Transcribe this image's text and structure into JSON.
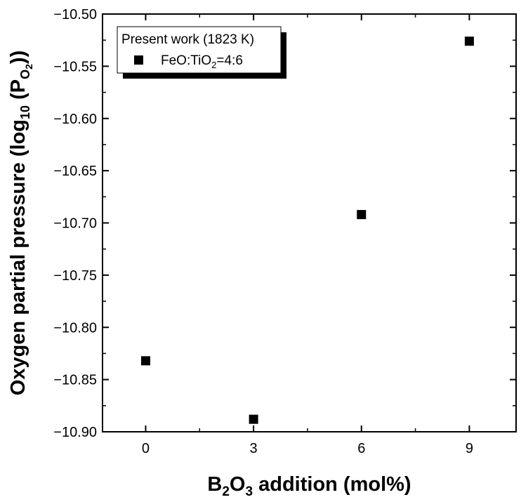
{
  "chart_data": {
    "type": "scatter",
    "title": "",
    "xlabel": {
      "parts": [
        {
          "text": "B",
          "sub": false
        },
        {
          "text": "2",
          "sub": true
        },
        {
          "text": "O",
          "sub": false
        },
        {
          "text": "3",
          "sub": true
        },
        {
          "text": " addition (mol%)",
          "sub": false
        }
      ]
    },
    "ylabel": {
      "parts": [
        {
          "text": "Oxygen partial pressure (log",
          "sub": false
        },
        {
          "text": "10",
          "sub": true
        },
        {
          "text": " (P",
          "sub": false
        },
        {
          "text": "O",
          "sub": true
        },
        {
          "text": "2",
          "subsub": true
        },
        {
          "text": "))",
          "sub": false
        }
      ]
    },
    "xlim": [
      -1.2,
      10.3
    ],
    "ylim": [
      -10.9,
      -10.5
    ],
    "x_ticks": [
      0,
      3,
      6,
      9
    ],
    "x_tick_labels": [
      "0",
      "3",
      "6",
      "9"
    ],
    "y_ticks": [
      -10.5,
      -10.55,
      -10.6,
      -10.65,
      -10.7,
      -10.75,
      -10.8,
      -10.85,
      -10.9
    ],
    "y_tick_labels": [
      "−10.50",
      "−10.55",
      "−10.60",
      "−10.65",
      "−10.70",
      "−10.75",
      "−10.80",
      "−10.85",
      "−10.90"
    ],
    "grid": false,
    "marker": "square",
    "marker_color": "#000000",
    "legend": {
      "placement": "top-left",
      "title": "Present work (1823 K)",
      "entries": [
        {
          "parts": [
            {
              "text": "FeO:TiO",
              "sub": false
            },
            {
              "text": "2",
              "sub": true
            },
            {
              "text": "=4:6",
              "sub": false
            }
          ]
        }
      ]
    },
    "series": [
      {
        "name": "FeO:TiO2=4:6",
        "x": [
          0,
          3,
          6,
          9
        ],
        "y": [
          -10.832,
          -10.888,
          -10.692,
          -10.526
        ]
      }
    ]
  }
}
